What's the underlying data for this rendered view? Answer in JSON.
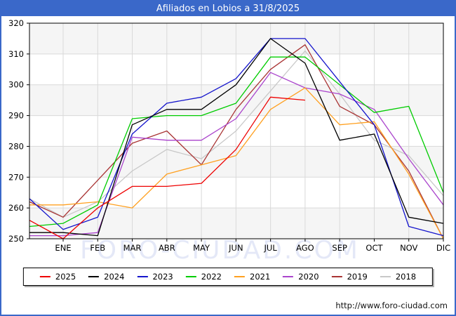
{
  "window": {
    "title": "Afiliados en Lobios a 31/8/2025"
  },
  "watermark_text": "FORO-CIUDAD.COM",
  "footer": {
    "url_text": "http://www.foro-ciudad.com"
  },
  "chart_data": {
    "type": "line",
    "title": "Afiliados en Lobios a 31/8/2025",
    "x_categories": [
      "ENE",
      "FEB",
      "MAR",
      "ABR",
      "MAY",
      "JUN",
      "JUL",
      "AGO",
      "SEP",
      "OCT",
      "NOV",
      "DIC"
    ],
    "y_ticks": [
      250,
      260,
      270,
      280,
      290,
      300,
      310,
      320
    ],
    "ylim": [
      250,
      320
    ],
    "grid": true,
    "band_fill": "#f5f5f5",
    "grid_color": "#d9d9d9",
    "axis_color": "#000000",
    "legend_position": "bottom",
    "series": [
      {
        "name": "2025",
        "color": "#ee0000",
        "edge_start": 256,
        "values": [
          250,
          260,
          267,
          267,
          268,
          279,
          296,
          295
        ]
      },
      {
        "name": "2024",
        "color": "#000000",
        "edge_start": 252,
        "values": [
          252,
          251,
          287,
          292,
          292,
          300,
          315,
          307,
          282,
          284,
          257,
          255
        ]
      },
      {
        "name": "2023",
        "color": "#1414cc",
        "edge_start": 263,
        "values": [
          253,
          257,
          284,
          294,
          296,
          302,
          315,
          315,
          301,
          287,
          254,
          251
        ]
      },
      {
        "name": "2022",
        "color": "#00cc00",
        "edge_start": 254,
        "values": [
          255,
          261,
          289,
          290,
          290,
          294,
          309,
          309,
          300,
          291,
          293,
          265
        ]
      },
      {
        "name": "2021",
        "color": "#ffa020",
        "edge_start": 261,
        "values": [
          261,
          262,
          260,
          271,
          274,
          277,
          292,
          299,
          287,
          288,
          271,
          250
        ]
      },
      {
        "name": "2020",
        "color": "#aa44cc",
        "edge_start": 251,
        "values": [
          251,
          252,
          283,
          282,
          282,
          289,
          304,
          299,
          297,
          292,
          276,
          261
        ]
      },
      {
        "name": "2019",
        "color": "#a93434",
        "edge_start": 262,
        "values": [
          257,
          269,
          281,
          285,
          274,
          292,
          305,
          313,
          293,
          287,
          272,
          250
        ]
      },
      {
        "name": "2018",
        "color": "#c8c8c8",
        "edge_start": 263,
        "values": [
          257,
          262,
          272,
          279,
          276,
          285,
          298,
          311,
          297,
          282,
          277,
          264
        ]
      }
    ]
  }
}
